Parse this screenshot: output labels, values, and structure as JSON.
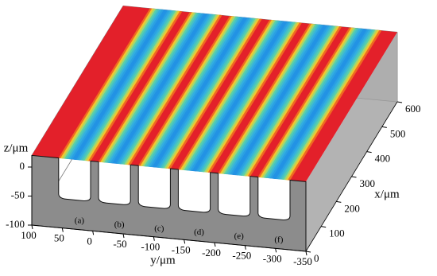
{
  "chart_data": {
    "type": "surface3d",
    "xlabel": "x/μm",
    "ylabel": "y/μm",
    "zlabel": "z/μm",
    "xlim": [
      0,
      600
    ],
    "ylim": [
      100,
      -350
    ],
    "zlim": [
      -100,
      20
    ],
    "xticks": [
      0,
      100,
      200,
      300,
      400,
      500,
      600
    ],
    "yticks": [
      100,
      50,
      0,
      -50,
      -100,
      -150,
      -200,
      -250,
      -300,
      -350
    ],
    "zticks": [
      0,
      -50,
      -100
    ],
    "channel_labels": [
      "(a)",
      "(b)",
      "(c)",
      "(d)",
      "(e)",
      "(f)"
    ]
  }
}
